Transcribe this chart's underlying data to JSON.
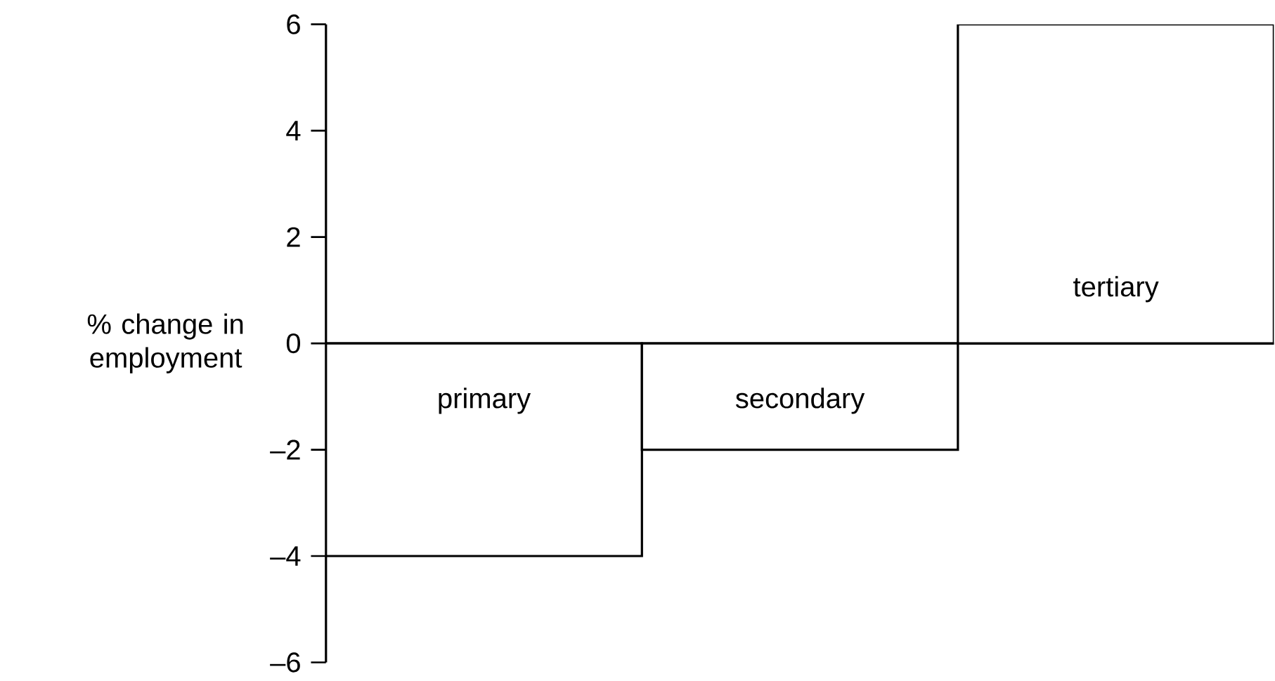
{
  "chart_data": {
    "type": "bar",
    "ylabel": "% change in employment",
    "categories": [
      "primary",
      "secondary",
      "tertiary"
    ],
    "values": [
      -4,
      -2,
      6
    ],
    "color": "#ffffff",
    "ylim": [
      -6,
      6
    ],
    "yticks": [
      {
        "value": -6,
        "label": "–6"
      },
      {
        "value": -4,
        "label": "–4"
      },
      {
        "value": -2,
        "label": "–2"
      },
      0,
      2,
      4,
      6
    ]
  }
}
